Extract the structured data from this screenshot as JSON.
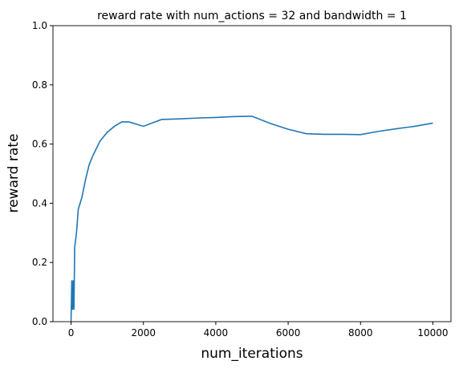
{
  "chart_data": {
    "type": "line",
    "title": "reward rate with num_actions = 32 and bandwidth = 1",
    "x_label": "num_iterations",
    "y_label": "reward rate",
    "x": [
      0,
      20,
      40,
      60,
      80,
      100,
      150,
      200,
      300,
      400,
      500,
      600,
      800,
      1000,
      1200,
      1400,
      1600,
      2000,
      2500,
      3000,
      3500,
      4000,
      4500,
      5000,
      5500,
      6000,
      6500,
      7000,
      7500,
      8000,
      8500,
      9000,
      9500,
      10000
    ],
    "series": [
      {
        "name": "reward rate",
        "color": "#1f77b4",
        "values": [
          0,
          0.14,
          0.04,
          0.14,
          0.04,
          0.25,
          0.3,
          0.38,
          0.42,
          0.48,
          0.53,
          0.56,
          0.61,
          0.64,
          0.66,
          0.675,
          0.675,
          0.66,
          0.683,
          0.685,
          0.688,
          0.69,
          0.693,
          0.694,
          0.67,
          0.65,
          0.635,
          0.633,
          0.633,
          0.632,
          0.643,
          0.652,
          0.66,
          0.671
        ]
      }
    ],
    "xlim": [
      -500,
      10500
    ],
    "xticks": [
      0,
      2000,
      4000,
      6000,
      8000,
      10000
    ],
    "ylim": [
      0,
      1
    ],
    "yticks": [
      {
        "value": 0,
        "label": "0.0"
      },
      0.2,
      0.4,
      0.6,
      0.8,
      {
        "value": 1,
        "label": "1.0"
      }
    ],
    "grid": false
  }
}
